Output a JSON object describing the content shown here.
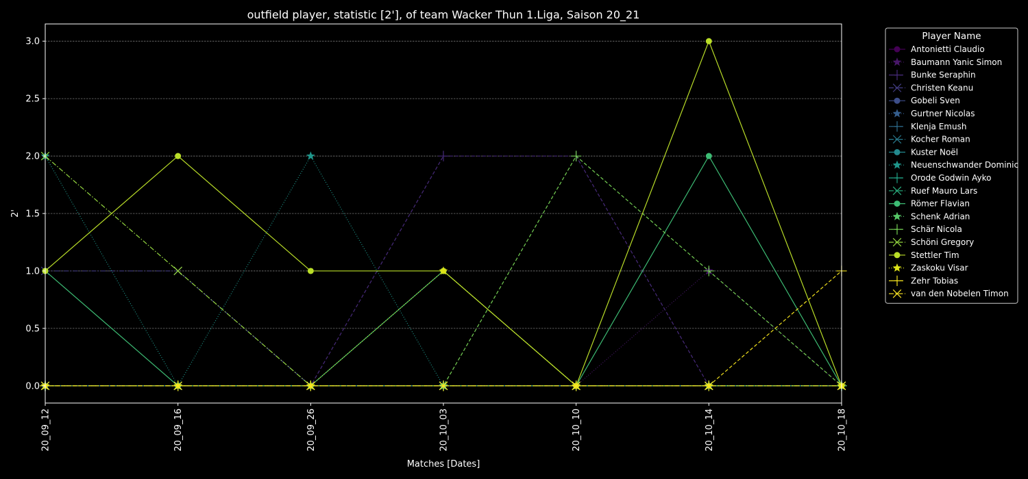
{
  "chart_data": {
    "type": "line",
    "title": "outfield player, statistic [2'], of team Wacker Thun 1.Liga, Saison 20_21",
    "xlabel": "Matches [Dates]",
    "ylabel": "2'",
    "categories": [
      "20_09_12",
      "20_09_16",
      "20_09_26",
      "20_10_03",
      "20_10_10",
      "20_10_14",
      "20_10_18"
    ],
    "ylim": [
      -0.15,
      3.15
    ],
    "yticks": [
      "0.0",
      "0.5",
      "1.0",
      "1.5",
      "2.0",
      "2.5",
      "3.0"
    ],
    "grid": "horizontal dashed",
    "legend": {
      "title": "Player Name",
      "placement": "outside right"
    },
    "series": [
      {
        "name": "Antonietti Claudio",
        "color": "#440154",
        "dash": "solid",
        "marker": "circle",
        "values": [
          0,
          0,
          0,
          0,
          0,
          0,
          0
        ]
      },
      {
        "name": "Baumann Yanic Simon",
        "color": "#481769",
        "dash": "dotted",
        "marker": "star",
        "values": [
          0,
          0,
          0,
          0,
          0,
          1,
          0
        ]
      },
      {
        "name": "Bunke Seraphin",
        "color": "#472a7a",
        "dash": "dashed",
        "marker": "plus",
        "values": [
          0,
          0,
          0,
          2,
          2,
          0,
          0
        ]
      },
      {
        "name": "Christen Keanu",
        "color": "#433d84",
        "dash": "dashdot",
        "marker": "x",
        "values": [
          1,
          1,
          0,
          0,
          0,
          0,
          0
        ]
      },
      {
        "name": "Gobeli Sven",
        "color": "#3d4e8a",
        "dash": "solid",
        "marker": "circle",
        "values": [
          0,
          0,
          0,
          0,
          0,
          0,
          0
        ]
      },
      {
        "name": "Gurtner Nicolas",
        "color": "#355e8d",
        "dash": "dotted",
        "marker": "star",
        "values": [
          0,
          0,
          0,
          0,
          0,
          0,
          0
        ]
      },
      {
        "name": "Klenja Emush",
        "color": "#2e6d8e",
        "dash": "dashed",
        "marker": "plus",
        "values": [
          0,
          0,
          0,
          0,
          0,
          0,
          0
        ]
      },
      {
        "name": "Kocher Roman",
        "color": "#297b8e",
        "dash": "dashdot",
        "marker": "x",
        "values": [
          0,
          0,
          0,
          0,
          0,
          0,
          0
        ]
      },
      {
        "name": "Kuster Noël",
        "color": "#23898e",
        "dash": "solid",
        "marker": "circle",
        "values": [
          0,
          0,
          0,
          0,
          0,
          0,
          0
        ]
      },
      {
        "name": "Neuenschwander Dominic",
        "color": "#1f968b",
        "dash": "dotted",
        "marker": "star",
        "values": [
          2,
          0,
          2,
          0,
          0,
          0,
          0
        ]
      },
      {
        "name": "Orode Godwin Ayko",
        "color": "#20a386",
        "dash": "dashed",
        "marker": "plus",
        "values": [
          0,
          0,
          0,
          0,
          0,
          0,
          0
        ]
      },
      {
        "name": "Ruef Mauro Lars",
        "color": "#29af7f",
        "dash": "dashdot",
        "marker": "x",
        "values": [
          0,
          0,
          0,
          0,
          0,
          0,
          0
        ]
      },
      {
        "name": "Römer Flavian",
        "color": "#3dbc74",
        "dash": "solid",
        "marker": "circle",
        "values": [
          1,
          0,
          0,
          1,
          0,
          2,
          0
        ]
      },
      {
        "name": "Schenk Adrian",
        "color": "#56c667",
        "dash": "dotted",
        "marker": "star",
        "values": [
          0,
          0,
          0,
          0,
          0,
          0,
          0
        ]
      },
      {
        "name": "Schär Nicola",
        "color": "#75d054",
        "dash": "dashed",
        "marker": "plus",
        "values": [
          0,
          0,
          0,
          0,
          2,
          1,
          0
        ]
      },
      {
        "name": "Schöni Gregory",
        "color": "#95d840",
        "dash": "dashdot",
        "marker": "x",
        "values": [
          2,
          1,
          0,
          0,
          0,
          0,
          0
        ]
      },
      {
        "name": "Stettler Tim",
        "color": "#bade28",
        "dash": "solid",
        "marker": "circle",
        "values": [
          1,
          2,
          1,
          1,
          0,
          3,
          0
        ]
      },
      {
        "name": "Zaskoku Visar",
        "color": "#dde318",
        "dash": "dotted",
        "marker": "star",
        "values": [
          0,
          0,
          0,
          1,
          0,
          0,
          0
        ]
      },
      {
        "name": "Zehr Tobias",
        "color": "#f3e21e",
        "dash": "dashed",
        "marker": "plus",
        "values": [
          0,
          0,
          0,
          0,
          0,
          0,
          1
        ]
      },
      {
        "name": "van den Nobelen Timon",
        "color": "#fde725",
        "dash": "dashdot",
        "marker": "x",
        "values": [
          0,
          0,
          0,
          0,
          0,
          0,
          0
        ]
      }
    ]
  }
}
